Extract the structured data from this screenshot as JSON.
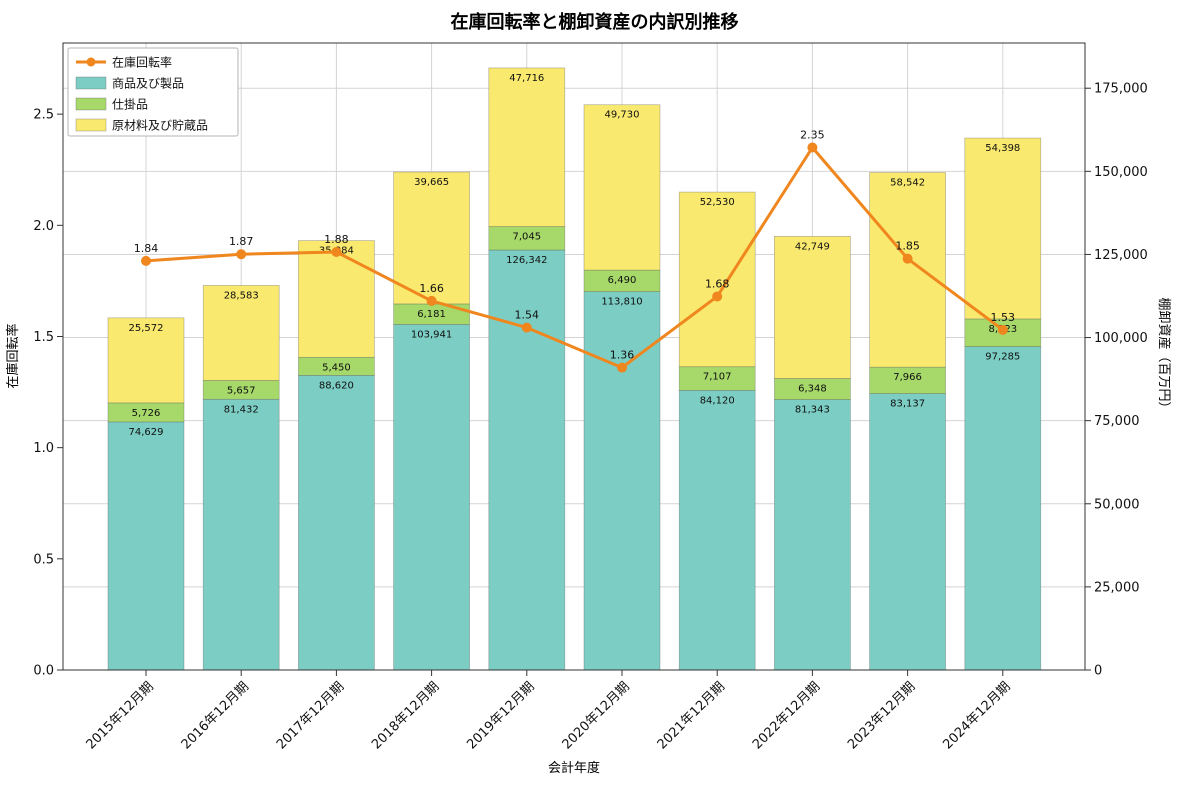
{
  "page": {
    "background": "#ffffff"
  },
  "chart_data": {
    "type": "bar",
    "subtype": "stacked-bar-with-line",
    "title": "在庫回転率と棚卸資産の内訳別推移",
    "xlabel": "会計年度",
    "ylabel_left": "在庫回転率",
    "ylabel_right": "棚卸資産（百万円）",
    "categories": [
      "2015年12月期",
      "2016年12月期",
      "2017年12月期",
      "2018年12月期",
      "2019年12月期",
      "2020年12月期",
      "2021年12月期",
      "2022年12月期",
      "2023年12月期",
      "2024年12月期"
    ],
    "bar_series": [
      {
        "name": "商品及び製品",
        "color": "#7ccdc4",
        "values": [
          74629,
          81432,
          88620,
          103941,
          126342,
          113810,
          84120,
          81343,
          83137,
          97285
        ]
      },
      {
        "name": "仕掛品",
        "color": "#a6d86a",
        "values": [
          5726,
          5657,
          5450,
          6181,
          7045,
          6490,
          7107,
          6348,
          7966,
          8323
        ]
      },
      {
        "name": "原材料及び貯蔵品",
        "color": "#f9e96f",
        "values": [
          25572,
          28583,
          35084,
          39665,
          47716,
          49730,
          52530,
          42749,
          58542,
          54398
        ]
      }
    ],
    "line_series": {
      "name": "在庫回転率",
      "color": "#f0861e",
      "values": [
        1.84,
        1.87,
        1.88,
        1.66,
        1.54,
        1.36,
        1.68,
        2.35,
        1.85,
        1.53
      ]
    },
    "axes": {
      "left_ticks": [
        0.0,
        0.5,
        1.0,
        1.5,
        2.0,
        2.5
      ],
      "left_max": 2.82,
      "right_ticks": [
        0,
        25000,
        50000,
        75000,
        100000,
        125000,
        150000,
        175000
      ],
      "right_max": 188600,
      "grid": true
    },
    "legend": {
      "position": "upper left"
    },
    "colors": {
      "grid": "#d4d4d4",
      "spine": "#333333",
      "bar_label": "#111111"
    }
  }
}
